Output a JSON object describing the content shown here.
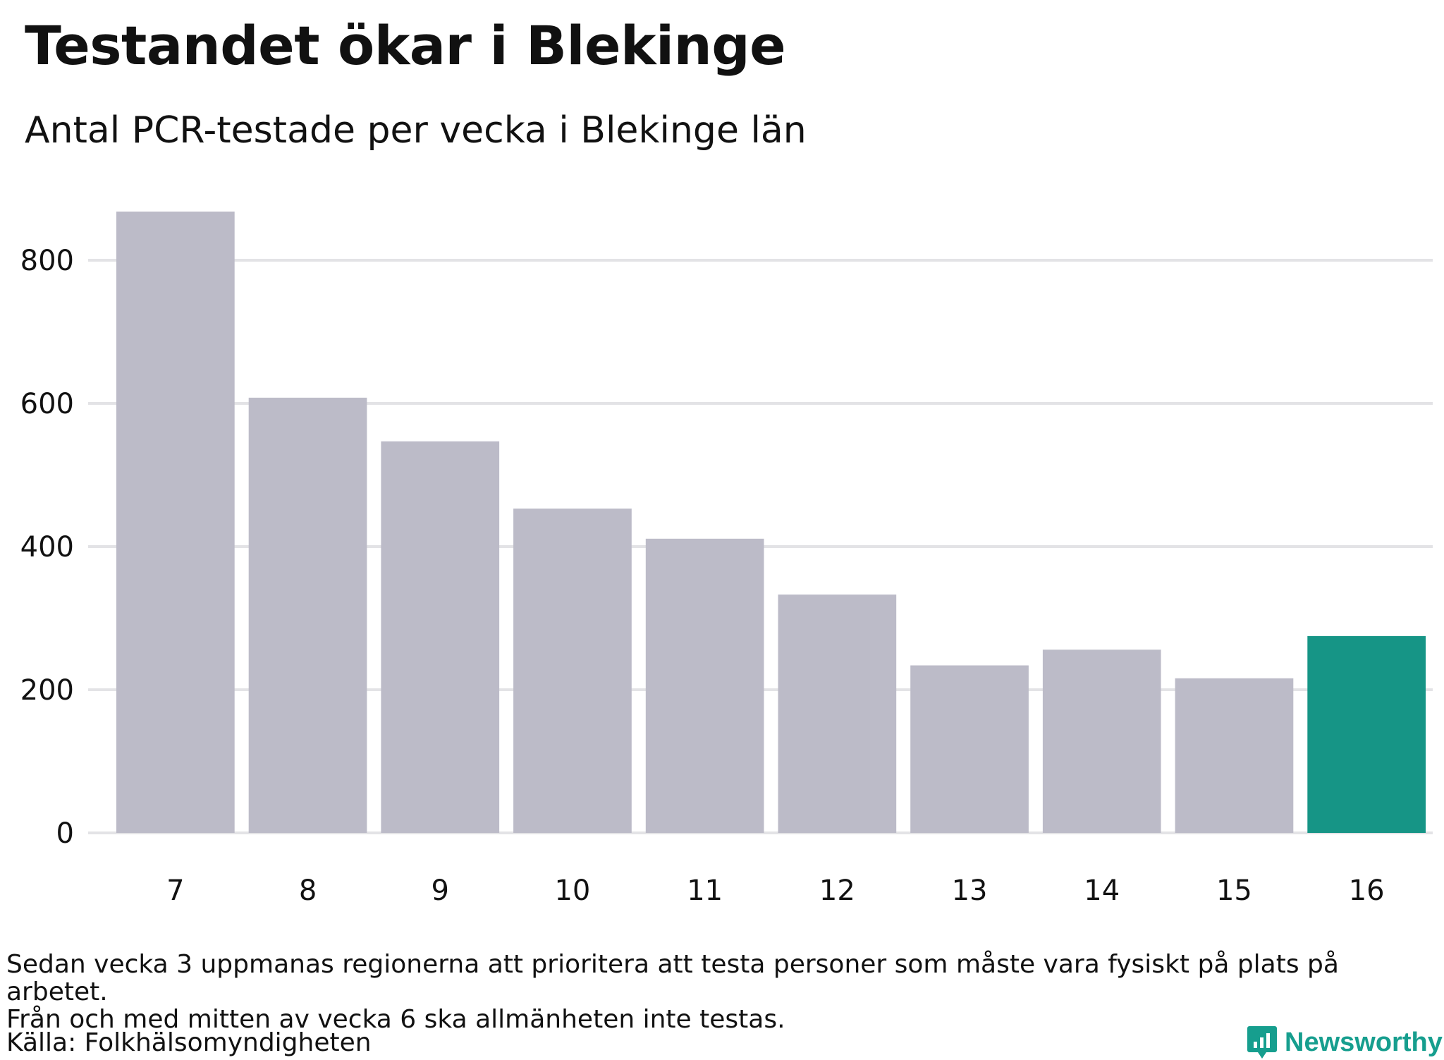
{
  "title": "Testandet ökar i Blekinge",
  "subtitle": "Antal PCR-testade per vecka i Blekinge län",
  "note_line1": "Sedan vecka 3 uppmanas regionerna att prioritera att testa personer som måste vara fysiskt på plats på arbetet.",
  "note_line2": "Från och med mitten av vecka 6 ska allmänheten inte testas.",
  "source": "Källa: Folkhälsomyndigheten",
  "logo_text": "Newsworthy",
  "colors": {
    "bar": "#bcbbc8",
    "highlight": "#169586",
    "grid": "#e3e3e6",
    "brand": "#169e8e"
  },
  "chart_data": {
    "type": "bar",
    "categories": [
      "7",
      "8",
      "9",
      "10",
      "11",
      "12",
      "13",
      "14",
      "15",
      "16"
    ],
    "values": [
      868,
      608,
      547,
      453,
      411,
      333,
      234,
      256,
      216,
      275
    ],
    "highlight_index": 9,
    "ylim": [
      0,
      900
    ],
    "yticks": [
      0,
      200,
      400,
      600,
      800
    ],
    "grid": true,
    "legend": "none"
  }
}
